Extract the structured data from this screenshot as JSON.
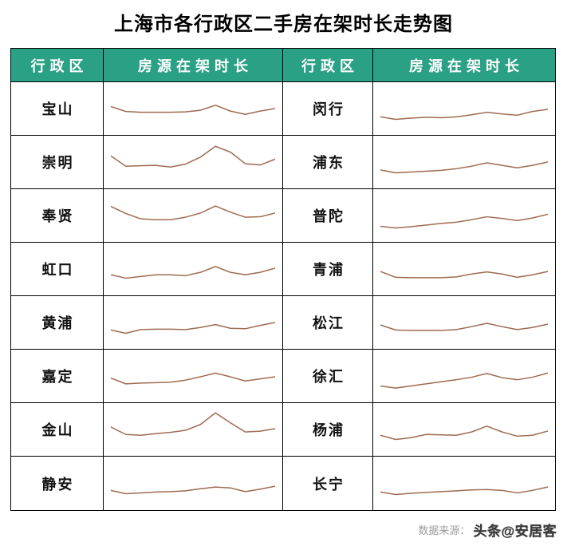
{
  "title": "上海市各行政区二手房在架时长走势图",
  "colors": {
    "header_bg": "#2aa185",
    "header_text": "#ffffff",
    "line": "#9e6b50",
    "border": "#000000",
    "source_label_text": "#9b9b9b",
    "watermark_text": "#3b3b3b"
  },
  "table": {
    "headers": {
      "district_left": "行政区",
      "trend_left": "房源在架时长",
      "district_right": "行政区",
      "trend_right": "房源在架时长"
    },
    "rows": [
      {
        "left": {
          "district": "宝山"
        },
        "right": {
          "district": "闵行"
        }
      },
      {
        "left": {
          "district": "崇明"
        },
        "right": {
          "district": "浦东"
        }
      },
      {
        "left": {
          "district": "奉贤"
        },
        "right": {
          "district": "普陀"
        }
      },
      {
        "left": {
          "district": "虹口"
        },
        "right": {
          "district": "青浦"
        }
      },
      {
        "left": {
          "district": "黄浦"
        },
        "right": {
          "district": "松江"
        }
      },
      {
        "left": {
          "district": "嘉定"
        },
        "right": {
          "district": "徐汇"
        }
      },
      {
        "left": {
          "district": "金山"
        },
        "right": {
          "district": "杨浦"
        }
      },
      {
        "left": {
          "district": "静安"
        },
        "right": {
          "district": "长宁"
        }
      }
    ]
  },
  "footer": {
    "source_label": "数据来源：",
    "source_value": "头条@安居客"
  },
  "chart_data": {
    "type": "line",
    "title": "上海市各行政区二手房在架时长走势图",
    "xlabel": "",
    "ylabel": "房源在架时长",
    "ylim": [
      0,
      100
    ],
    "legend_position": "none",
    "grid": false,
    "note_scale": "sparklines are unlabeled; values estimated as normalized 0-100 vertical positions, 12 evenly spaced points each",
    "series": [
      {
        "name": "宝山",
        "values": [
          55,
          43,
          41,
          41,
          41,
          42,
          46,
          58,
          44,
          36,
          44,
          50
        ]
      },
      {
        "name": "闵行",
        "values": [
          30,
          24,
          27,
          29,
          28,
          30,
          35,
          41,
          37,
          34,
          43,
          48
        ]
      },
      {
        "name": "崇明",
        "values": [
          65,
          40,
          41,
          42,
          38,
          45,
          62,
          88,
          74,
          46,
          43,
          57
        ]
      },
      {
        "name": "浦东",
        "values": [
          31,
          24,
          26,
          28,
          30,
          34,
          40,
          48,
          42,
          36,
          42,
          50
        ]
      },
      {
        "name": "奉贤",
        "values": [
          72,
          55,
          42,
          40,
          40,
          46,
          56,
          73,
          58,
          46,
          47,
          56
        ]
      },
      {
        "name": "普陀",
        "values": [
          24,
          20,
          23,
          27,
          31,
          34,
          40,
          47,
          43,
          38,
          44,
          53
        ]
      },
      {
        "name": "虹口",
        "values": [
          36,
          28,
          32,
          36,
          36,
          34,
          42,
          56,
          42,
          36,
          42,
          52
        ]
      },
      {
        "name": "青浦",
        "values": [
          44,
          30,
          29,
          29,
          29,
          31,
          38,
          43,
          38,
          30,
          36,
          44
        ]
      },
      {
        "name": "黄浦",
        "values": [
          32,
          24,
          33,
          34,
          34,
          33,
          38,
          45,
          36,
          35,
          43,
          50
        ]
      },
      {
        "name": "松江",
        "values": [
          44,
          32,
          31,
          31,
          31,
          33,
          40,
          48,
          40,
          33,
          38,
          46
        ]
      },
      {
        "name": "嘉定",
        "values": [
          45,
          31,
          33,
          34,
          35,
          40,
          48,
          57,
          48,
          38,
          43,
          48
        ]
      },
      {
        "name": "徐汇",
        "values": [
          26,
          21,
          26,
          31,
          36,
          41,
          47,
          56,
          46,
          41,
          47,
          57
        ]
      },
      {
        "name": "金山",
        "values": [
          56,
          38,
          36,
          40,
          43,
          48,
          62,
          90,
          66,
          44,
          46,
          52
        ]
      },
      {
        "name": "杨浦",
        "values": [
          36,
          26,
          30,
          38,
          37,
          36,
          44,
          58,
          44,
          34,
          36,
          46
        ]
      },
      {
        "name": "静安",
        "values": [
          34,
          26,
          28,
          30,
          31,
          33,
          38,
          42,
          40,
          31,
          37,
          44
        ]
      },
      {
        "name": "长宁",
        "values": [
          30,
          24,
          27,
          29,
          31,
          33,
          35,
          36,
          34,
          28,
          34,
          42
        ]
      }
    ]
  }
}
